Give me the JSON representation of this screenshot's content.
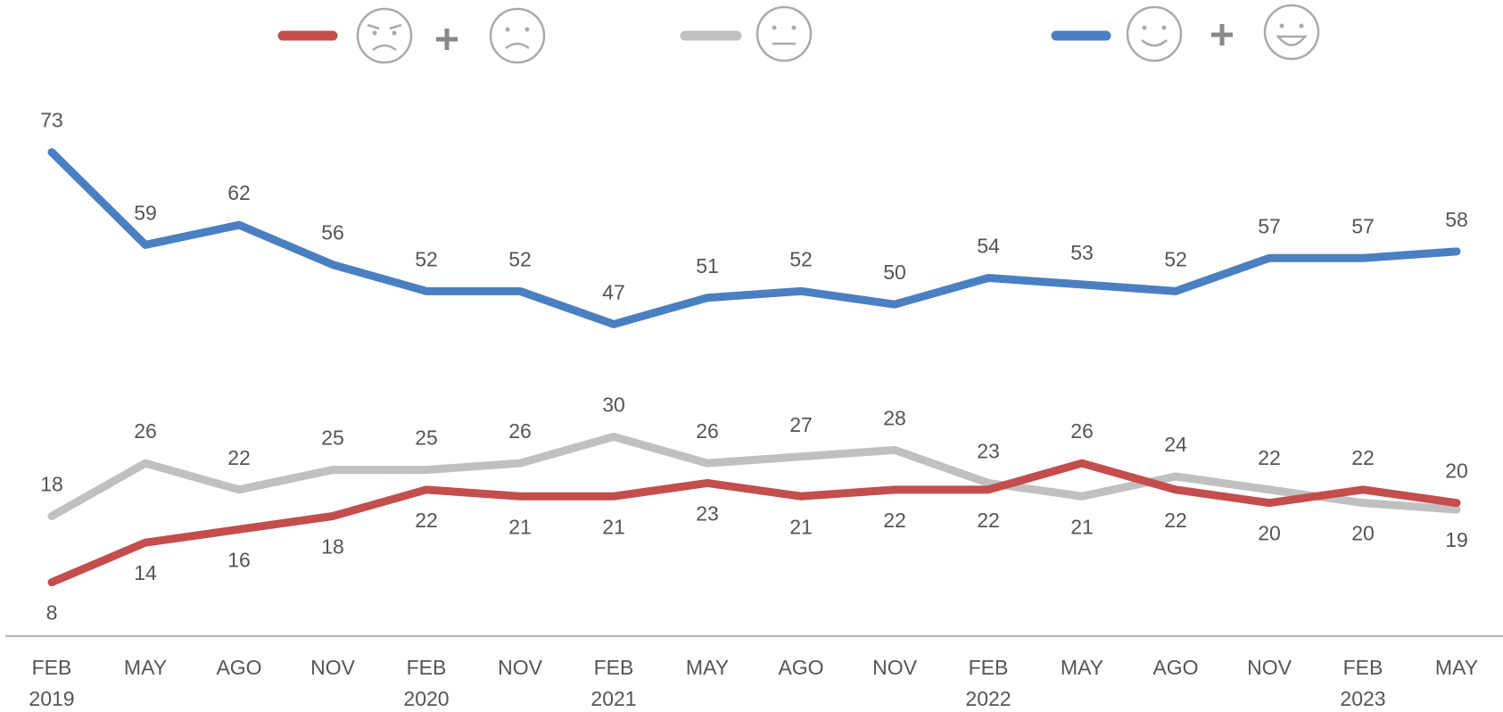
{
  "chart_data": {
    "type": "line",
    "categories": [
      [
        "FEB",
        "2019"
      ],
      [
        "MAY"
      ],
      [
        "AGO"
      ],
      [
        "NOV"
      ],
      [
        "FEB",
        "2020"
      ],
      [
        "NOV"
      ],
      [
        "FEB",
        "2021"
      ],
      [
        "MAY"
      ],
      [
        "AGO"
      ],
      [
        "NOV"
      ],
      [
        "FEB",
        "2022"
      ],
      [
        "MAY"
      ],
      [
        "AGO"
      ],
      [
        "NOV"
      ],
      [
        "FEB",
        "2023"
      ],
      [
        "MAY"
      ]
    ],
    "series": [
      {
        "color": "#4a7fc1",
        "values": [
          73,
          59,
          62,
          56,
          52,
          52,
          47,
          51,
          52,
          50,
          54,
          53,
          52,
          57,
          57,
          58
        ]
      },
      {
        "color": "#c0c0c0",
        "values": [
          18,
          26,
          22,
          25,
          25,
          26,
          30,
          26,
          27,
          28,
          23,
          21,
          24,
          22,
          20,
          19
        ]
      },
      {
        "color": "#c44d4d",
        "values": [
          8,
          14,
          16,
          18,
          22,
          21,
          21,
          23,
          21,
          22,
          22,
          26,
          22,
          20,
          22,
          20
        ]
      }
    ],
    "ylim": [
      0,
      96
    ]
  }
}
